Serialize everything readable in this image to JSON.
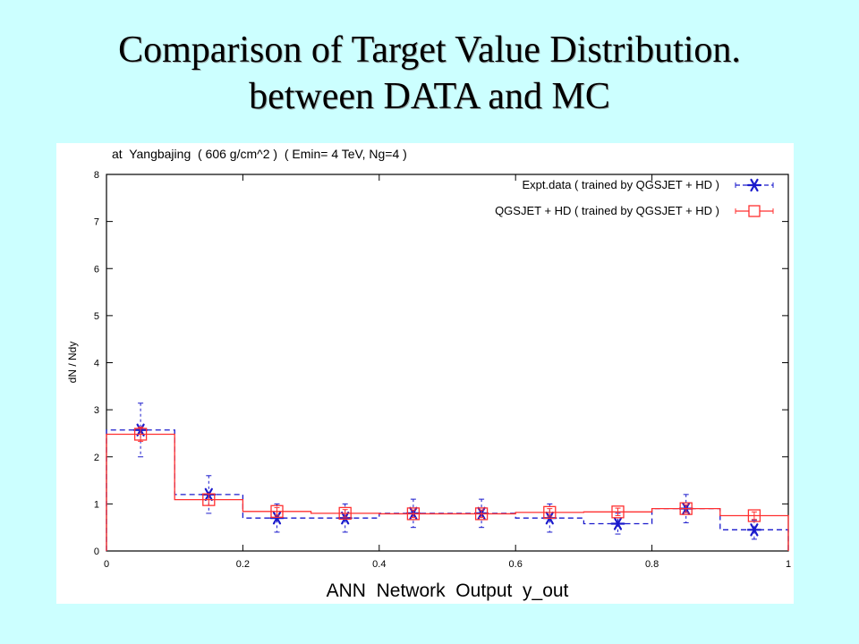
{
  "slide": {
    "title_line1": "Comparison of Target Value Distribution.",
    "title_line2": "between DATA and MC"
  },
  "chart_data": {
    "type": "step",
    "title": "at  Yangbajing  ( 606 g/cm^2 )  ( Emin= 4 TeV, Ng=4 )",
    "xlabel": "ANN  Network  Output  y_out",
    "ylabel": "dN / Ndy",
    "xlim": [
      0,
      1
    ],
    "ylim": [
      0,
      8
    ],
    "x_ticks": [
      0,
      0.2,
      0.4,
      0.6,
      0.8,
      1
    ],
    "x_tick_labels": [
      "0",
      "0.2",
      "0.4",
      "0.6",
      "0.8",
      "1"
    ],
    "y_ticks": [
      0,
      1,
      2,
      3,
      4,
      5,
      6,
      7,
      8
    ],
    "y_tick_labels": [
      "0",
      "1",
      "2",
      "3",
      "4",
      "5",
      "6",
      "7",
      "8"
    ],
    "bin_edges": [
      0,
      0.1,
      0.2,
      0.3,
      0.4,
      0.5,
      0.6,
      0.7,
      0.8,
      0.9,
      1.0
    ],
    "x": [
      0.05,
      0.15,
      0.25,
      0.35,
      0.45,
      0.55,
      0.65,
      0.75,
      0.85,
      0.95
    ],
    "series": [
      {
        "name": "Expt.data ( trained by QGSJET + HD )",
        "color": "#1a1acc",
        "marker": "asterisk",
        "line": "dashed",
        "values": [
          2.57,
          1.2,
          0.7,
          0.7,
          0.8,
          0.8,
          0.7,
          0.58,
          0.9,
          0.45
        ],
        "errors": [
          0.57,
          0.4,
          0.3,
          0.3,
          0.3,
          0.3,
          0.3,
          0.22,
          0.3,
          0.2
        ]
      },
      {
        "name": "QGSJET + HD ( trained by QGSJET + HD )",
        "color": "#ff3030",
        "marker": "square",
        "line": "solid",
        "values": [
          2.48,
          1.09,
          0.84,
          0.8,
          0.79,
          0.79,
          0.82,
          0.83,
          0.9,
          0.75
        ],
        "errors": [
          0.15,
          0.12,
          0.08,
          0.08,
          0.08,
          0.08,
          0.08,
          0.08,
          0.08,
          0.08
        ]
      }
    ],
    "legend_position": "top-right"
  }
}
